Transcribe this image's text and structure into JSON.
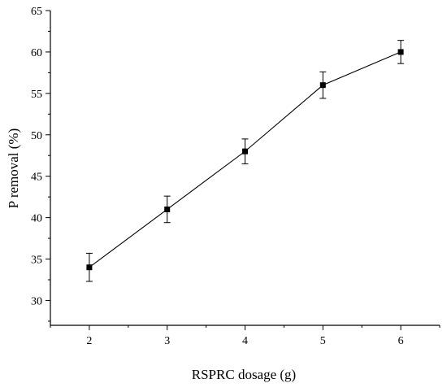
{
  "chart_data": {
    "type": "line",
    "xlabel": "RSPRC dosage (g)",
    "ylabel": "P removal (%)",
    "xlim": [
      1.5,
      6.5
    ],
    "ylim": [
      27,
      65
    ],
    "x_ticks": [
      2,
      3,
      4,
      5,
      6
    ],
    "y_ticks": [
      30,
      35,
      40,
      45,
      50,
      55,
      60,
      65
    ],
    "grid": false,
    "series": [
      {
        "x": [
          2,
          3,
          4,
          5,
          6
        ],
        "values": [
          34,
          41,
          48,
          56,
          60
        ],
        "error": [
          1.7,
          1.6,
          1.5,
          1.6,
          1.4
        ],
        "marker": "square",
        "color": "#000000"
      }
    ]
  }
}
